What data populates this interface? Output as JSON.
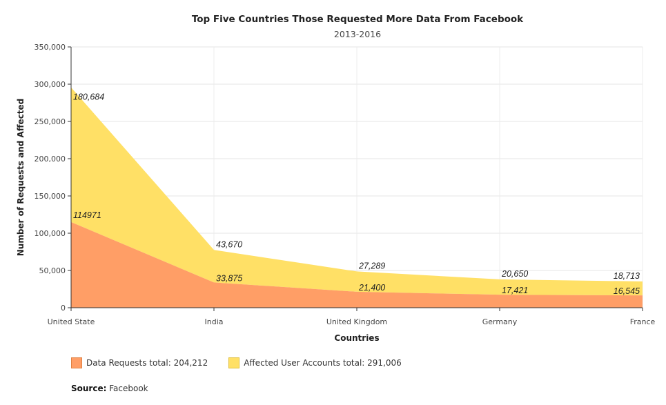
{
  "chart_data": {
    "type": "area",
    "stacked": true,
    "title": "Top Five Countries Those Requested More Data From Facebook",
    "subtitle": "2013-2016",
    "xlabel": "Countries",
    "ylabel": "Number of Requests and Affected",
    "categories": [
      "United State",
      "India",
      "United Kingdom",
      "Germany",
      "France"
    ],
    "ylim": [
      0,
      350000
    ],
    "yticks": [
      "0",
      "50,000",
      "100,000",
      "150,000",
      "200,000",
      "250,000",
      "300,000",
      "350,000"
    ],
    "grid": true,
    "legend_position": "bottom-left",
    "series": [
      {
        "name": "Data Requests",
        "legend_label": "Data Requests total: 204,212",
        "values": [
          114971,
          33875,
          21400,
          17421,
          16545
        ],
        "labels": [
          "114971",
          "33,875",
          "21,400",
          "17,421",
          "16,545"
        ],
        "color": "#ff9e66"
      },
      {
        "name": "Affected User Accounts",
        "legend_label": "Affected User Accounts  total: 291,006",
        "values": [
          180684,
          43670,
          27289,
          20650,
          18713
        ],
        "labels": [
          "180,684",
          "43,670",
          "27,289",
          "20,650",
          "18,713"
        ],
        "color": "#ffe066"
      }
    ]
  },
  "source": {
    "label": "Source:",
    "value": "Facebook"
  }
}
